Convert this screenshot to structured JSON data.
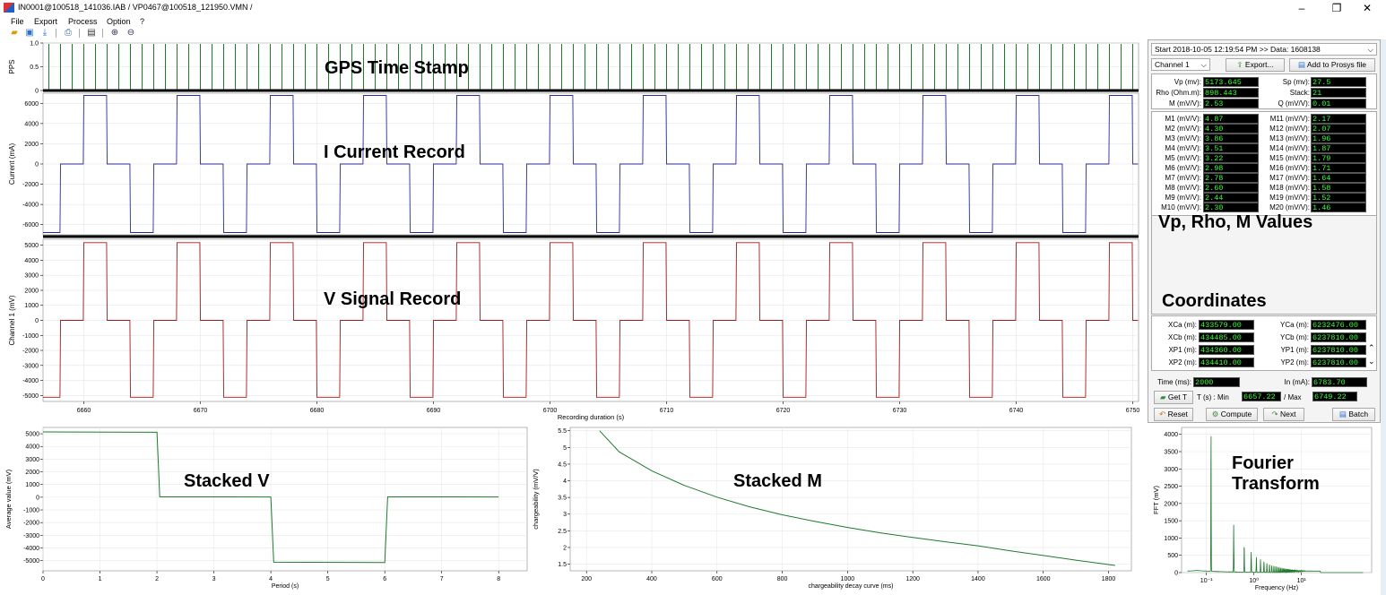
{
  "window": {
    "title": "IN0001@100518_141036.IAB / VP0467@100518_121950.VMN /",
    "minimize": "–",
    "restore": "❐",
    "close": "✕"
  },
  "menu": [
    "File",
    "Export",
    "Process",
    "Option",
    "?"
  ],
  "toolbar_icons": [
    "open-folder-icon",
    "save-icon",
    "download-icon",
    "print-icon",
    "document-icon",
    "zoom-in-icon",
    "zoom-out-icon"
  ],
  "labels": {
    "gps": "GPS Time Stamp",
    "current": "I Current Record",
    "signal": "V Signal Record",
    "values": "Vp, Rho, M Values",
    "coords": "Coordinates",
    "stacked_v": "Stacked V",
    "stacked_m": "Stacked M",
    "fourier_1": "Fourier",
    "fourier_2": "Transform"
  },
  "right_panel": {
    "start": "Start 2018-10-05 12:19:54 PM  >> Data: 1608138",
    "channel": "Channel 1",
    "export_btn": "Export...",
    "prosys_btn": "Add to Prosys file",
    "vp_label": "Vp (mv):",
    "vp": "5173.645",
    "sp_label": "Sp (mv):",
    "sp": "27.5",
    "rho_label": "Rho (Ohm.m):",
    "rho": "898.443",
    "stack_label": "Stack:",
    "stack": "21",
    "m_label": "M (mV/V):",
    "m": "2.53",
    "q_label": "Q (mV/V):",
    "q": "0.01",
    "m_left": [
      {
        "label": "M1 (mV/V):",
        "value": "4.87"
      },
      {
        "label": "M2 (mV/V):",
        "value": "4.30"
      },
      {
        "label": "M3 (mV/V):",
        "value": "3.86"
      },
      {
        "label": "M4 (mV/V):",
        "value": "3.51"
      },
      {
        "label": "M5 (mV/V):",
        "value": "3.22"
      },
      {
        "label": "M6 (mV/V):",
        "value": "2.98"
      },
      {
        "label": "M7 (mV/V):",
        "value": "2.78"
      },
      {
        "label": "M8 (mV/V):",
        "value": "2.60"
      },
      {
        "label": "M9 (mV/V):",
        "value": "2.44"
      },
      {
        "label": "M10 (mV/V):",
        "value": "2.30"
      }
    ],
    "m_right": [
      {
        "label": "M11 (mV/V):",
        "value": "2.17"
      },
      {
        "label": "M12 (mV/V):",
        "value": "2.07"
      },
      {
        "label": "M13 (mV/V):",
        "value": "1.96"
      },
      {
        "label": "M14 (mV/V):",
        "value": "1.87"
      },
      {
        "label": "M15 (mV/V):",
        "value": "1.79"
      },
      {
        "label": "M16 (mV/V):",
        "value": "1.71"
      },
      {
        "label": "M17 (mV/V):",
        "value": "1.64"
      },
      {
        "label": "M18 (mV/V):",
        "value": "1.58"
      },
      {
        "label": "M19 (mV/V):",
        "value": "1.52"
      },
      {
        "label": "M20 (mV/V):",
        "value": "1.46"
      }
    ],
    "coords": [
      {
        "llabel": "XCa (m):",
        "lvalue": "433579.00",
        "rlabel": "YCa (m):",
        "rvalue": "6232476.00"
      },
      {
        "llabel": "XCb (m):",
        "lvalue": "434485.00",
        "rlabel": "YCb (m):",
        "rvalue": "6237810.00"
      },
      {
        "llabel": "XP1 (m):",
        "lvalue": "434360.00",
        "rlabel": "YP1 (m):",
        "rvalue": "6237810.00"
      },
      {
        "llabel": "XP2 (m):",
        "lvalue": "434410.00",
        "rlabel": "YP2 (m):",
        "rvalue": "6237810.00"
      }
    ],
    "time_label": "Time (ms):",
    "time": "2000",
    "in_label": "In (mA):",
    "in": "6783.70",
    "get_t": "Get T",
    "t_min_label": "T (s) : Min",
    "t_min": "6657.22",
    "t_max_label": "/ Max",
    "t_max": "6749.22",
    "reset": "Reset",
    "compute": "Compute",
    "next": "Next",
    "batch": "Batch"
  },
  "chart_data": [
    {
      "type": "line",
      "name_ref": "gps-pps",
      "ylabel": "PPS",
      "ylim": [
        0,
        1.0
      ],
      "yticks": [
        0,
        0.5,
        1.0
      ],
      "ytick_labels": [
        "0",
        "0.5",
        "1.0"
      ],
      "pulse_interval_s": 1,
      "x_range": [
        6657,
        6750
      ]
    },
    {
      "type": "line",
      "name_ref": "current",
      "ylabel": "Current (mA)",
      "ylim": [
        -7000,
        7000
      ],
      "yticks": [
        -6000,
        -4000,
        -2000,
        0,
        2000,
        4000,
        6000
      ],
      "high": 6780,
      "low": -6780,
      "period_s": 8,
      "phase_s": 6660
    },
    {
      "type": "line",
      "name_ref": "voltage",
      "ylabel": "Channel 1 (mV)",
      "ylim": [
        -5400,
        5400
      ],
      "yticks": [
        -5000,
        -4000,
        -3000,
        -2000,
        -1000,
        0,
        1000,
        2000,
        3000,
        4000,
        5000
      ],
      "high": 5173,
      "low": -5120,
      "period_s": 8,
      "phase_s": 6660,
      "xlabel": "Recording duration (s)",
      "xlim": [
        6656.5,
        6750.5
      ],
      "xticks": [
        6660,
        6670,
        6680,
        6690,
        6700,
        6710,
        6720,
        6730,
        6740,
        6750
      ]
    },
    {
      "type": "line",
      "name_ref": "stacked-v",
      "xlabel": "Period  (s)",
      "ylabel": "Average value (mV)",
      "xlim": [
        0,
        8.5
      ],
      "ylim": [
        -5800,
        5500
      ],
      "xticks": [
        0,
        1,
        2,
        3,
        4,
        5,
        6,
        7,
        8
      ],
      "yticks": [
        -5000,
        -4000,
        -3000,
        -2000,
        -1000,
        0,
        1000,
        2000,
        3000,
        4000,
        5000
      ],
      "x": [
        0,
        2,
        2.05,
        4,
        4.05,
        6,
        6.05,
        8
      ],
      "y": [
        5150,
        5120,
        30,
        20,
        -5120,
        -5150,
        30,
        20
      ]
    },
    {
      "type": "line",
      "name_ref": "stacked-m",
      "xlabel": "chargeability decay curve (ms)",
      "ylabel": "chargeability (mV/V)",
      "xlim": [
        150,
        1870
      ],
      "ylim": [
        1.3,
        5.6
      ],
      "xticks": [
        200,
        400,
        600,
        800,
        1000,
        1200,
        1400,
        1600,
        1800
      ],
      "yticks": [
        1.5,
        2.0,
        2.5,
        3.0,
        3.5,
        4.0,
        4.5,
        5.0,
        5.5
      ],
      "x": [
        240,
        300,
        400,
        500,
        600,
        700,
        800,
        900,
        1000,
        1100,
        1200,
        1300,
        1400,
        1500,
        1600,
        1700,
        1820
      ],
      "y": [
        5.5,
        4.87,
        4.3,
        3.86,
        3.51,
        3.22,
        2.98,
        2.78,
        2.6,
        2.44,
        2.3,
        2.17,
        2.05,
        1.9,
        1.76,
        1.62,
        1.46
      ]
    },
    {
      "type": "line",
      "name_ref": "fourier",
      "xlabel": "Frequency (Hz)",
      "ylabel": "FFT (mV)",
      "log_x": true,
      "xlim": [
        0.03,
        300
      ],
      "ylim": [
        0,
        4200
      ],
      "yticks": [
        0,
        500,
        1000,
        1500,
        2000,
        2500,
        3000,
        3500,
        4000
      ],
      "xtick_labels": [
        "10⁻¹",
        "10⁰",
        "10¹"
      ],
      "peak_hz": 0.125,
      "peak": 4100
    }
  ]
}
